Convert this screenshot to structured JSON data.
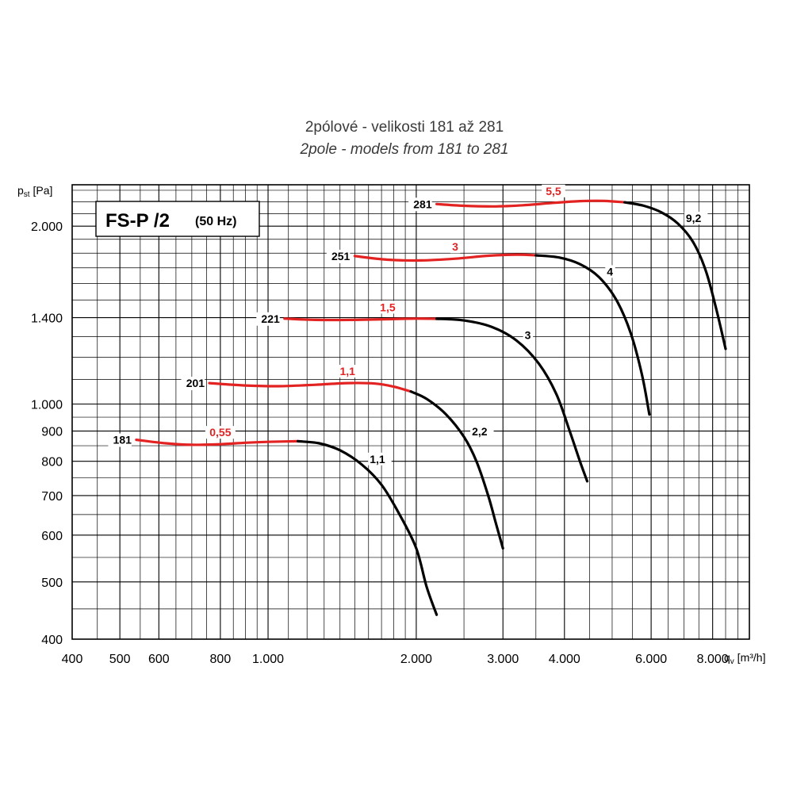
{
  "title_cz": "2pólové - velikosti 181 až 281",
  "title_en": "2pole - models from 181 to 281",
  "legend_box": {
    "model": "FS-P /2",
    "freq": "(50 Hz)"
  },
  "chart_data": {
    "type": "line",
    "x_scale": "log",
    "y_scale": "log",
    "xlim": [
      400,
      9500
    ],
    "ylim": [
      400,
      2350
    ],
    "ylabel_main": "p",
    "ylabel_sub": "st",
    "ylabel_unit": " [Pa]",
    "xlabel_main": "q",
    "xlabel_sub": "v",
    "xlabel_unit": " [m³/h]",
    "x_ticks": [
      {
        "v": 400,
        "label": "400"
      },
      {
        "v": 500,
        "label": "500"
      },
      {
        "v": 600,
        "label": "600"
      },
      {
        "v": 800,
        "label": "800"
      },
      {
        "v": 1000,
        "label": "1.000"
      },
      {
        "v": 2000,
        "label": "2.000"
      },
      {
        "v": 3000,
        "label": "3.000"
      },
      {
        "v": 4000,
        "label": "4.000"
      },
      {
        "v": 6000,
        "label": "6.000"
      },
      {
        "v": 8000,
        "label": "8.000"
      }
    ],
    "y_ticks": [
      {
        "v": 400,
        "label": "400"
      },
      {
        "v": 500,
        "label": "500"
      },
      {
        "v": 600,
        "label": "600"
      },
      {
        "v": 700,
        "label": "700"
      },
      {
        "v": 800,
        "label": "800"
      },
      {
        "v": 900,
        "label": "900"
      },
      {
        "v": 1000,
        "label": "1.000"
      },
      {
        "v": 1400,
        "label": "1.400"
      },
      {
        "v": 2000,
        "label": "2.000"
      }
    ],
    "grid": true,
    "colors": {
      "red": "#e32222",
      "black": "#000000"
    },
    "series": [
      {
        "name": "181",
        "red_label": "0,55",
        "black_label": "1,1",
        "red": [
          [
            540,
            870
          ],
          [
            620,
            858
          ],
          [
            700,
            853
          ],
          [
            800,
            855
          ],
          [
            900,
            860
          ],
          [
            1000,
            863
          ],
          [
            1150,
            865
          ]
        ],
        "black": [
          [
            1150,
            865
          ],
          [
            1270,
            858
          ],
          [
            1400,
            835
          ],
          [
            1550,
            790
          ],
          [
            1700,
            730
          ],
          [
            1850,
            650
          ],
          [
            2000,
            570
          ],
          [
            2100,
            490
          ],
          [
            2200,
            440
          ]
        ]
      },
      {
        "name": "201",
        "red_label": "1,1",
        "black_label": "2,2",
        "red": [
          [
            760,
            1085
          ],
          [
            900,
            1075
          ],
          [
            1050,
            1072
          ],
          [
            1250,
            1078
          ],
          [
            1450,
            1085
          ],
          [
            1650,
            1083
          ],
          [
            1800,
            1070
          ],
          [
            1950,
            1050
          ]
        ],
        "black": [
          [
            1950,
            1050
          ],
          [
            2100,
            1020
          ],
          [
            2300,
            960
          ],
          [
            2500,
            880
          ],
          [
            2650,
            800
          ],
          [
            2800,
            700
          ],
          [
            2900,
            630
          ],
          [
            3000,
            570
          ]
        ]
      },
      {
        "name": "221",
        "red_label": "1,5",
        "black_label": "3",
        "red": [
          [
            1080,
            1395
          ],
          [
            1250,
            1388
          ],
          [
            1500,
            1388
          ],
          [
            1750,
            1392
          ],
          [
            2000,
            1395
          ],
          [
            2200,
            1394
          ]
        ],
        "black": [
          [
            2200,
            1394
          ],
          [
            2500,
            1385
          ],
          [
            2850,
            1350
          ],
          [
            3200,
            1280
          ],
          [
            3550,
            1170
          ],
          [
            3850,
            1040
          ],
          [
            4100,
            900
          ],
          [
            4300,
            800
          ],
          [
            4450,
            740
          ]
        ]
      },
      {
        "name": "251",
        "red_label": "3",
        "black_label": "4",
        "red": [
          [
            1500,
            1780
          ],
          [
            1750,
            1755
          ],
          [
            2050,
            1750
          ],
          [
            2400,
            1762
          ],
          [
            2800,
            1782
          ],
          [
            3200,
            1790
          ],
          [
            3500,
            1785
          ]
        ],
        "black": [
          [
            3500,
            1785
          ],
          [
            3900,
            1770
          ],
          [
            4300,
            1725
          ],
          [
            4700,
            1640
          ],
          [
            5100,
            1500
          ],
          [
            5450,
            1320
          ],
          [
            5750,
            1120
          ],
          [
            5950,
            960
          ]
        ]
      },
      {
        "name": "281",
        "red_label": "5,5",
        "black_label": "9,2",
        "red": [
          [
            2200,
            2180
          ],
          [
            2500,
            2165
          ],
          [
            2900,
            2160
          ],
          [
            3300,
            2170
          ],
          [
            3800,
            2190
          ],
          [
            4300,
            2205
          ],
          [
            4800,
            2207
          ],
          [
            5300,
            2195
          ]
        ],
        "black": [
          [
            5300,
            2195
          ],
          [
            5800,
            2165
          ],
          [
            6300,
            2110
          ],
          [
            6800,
            2020
          ],
          [
            7300,
            1880
          ],
          [
            7750,
            1680
          ],
          [
            8150,
            1440
          ],
          [
            8500,
            1240
          ]
        ]
      }
    ]
  }
}
